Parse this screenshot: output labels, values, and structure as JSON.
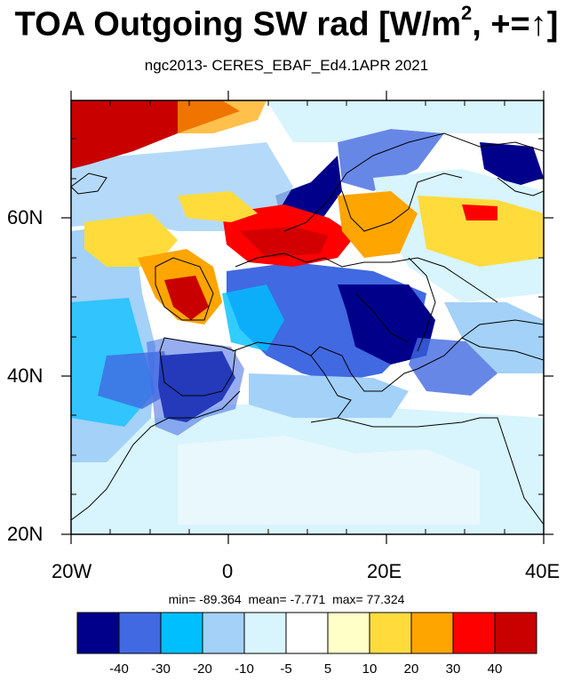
{
  "title": {
    "main": "TOA Outgoing SW rad [W/m",
    "sup": "2",
    "tail": ", +=↑]"
  },
  "subtitle": "ngc2013- CERES_EBAF_Ed4.1APR 2021",
  "axes": {
    "x_ticks": [
      {
        "label": "20W",
        "lon": -20
      },
      {
        "label": "0",
        "lon": 0
      },
      {
        "label": "20E",
        "lon": 20
      },
      {
        "label": "40E",
        "lon": 40
      }
    ],
    "y_ticks": [
      {
        "label": "60N",
        "lat": 60
      },
      {
        "label": "40N",
        "lat": 40
      },
      {
        "label": "20N",
        "lat": 20
      }
    ],
    "lon_range": [
      -20,
      40
    ],
    "lat_range": [
      20,
      75
    ]
  },
  "stats": {
    "min_label": "min=",
    "min": "-89.364",
    "mean_label": "mean=",
    "mean": "-7.771",
    "max_label": "max=",
    "max": "77.324"
  },
  "colorbar": {
    "colors": [
      "#00008b",
      "#4169e1",
      "#00bfff",
      "#a3d1f8",
      "#d8f4fc",
      "#ffffff",
      "#ffffc8",
      "#ffdc3c",
      "#ffa500",
      "#ff0000",
      "#c80000"
    ],
    "labels": [
      "-40",
      "-30",
      "-20",
      "-10",
      "-5",
      "5",
      "10",
      "20",
      "30",
      "40"
    ]
  }
}
